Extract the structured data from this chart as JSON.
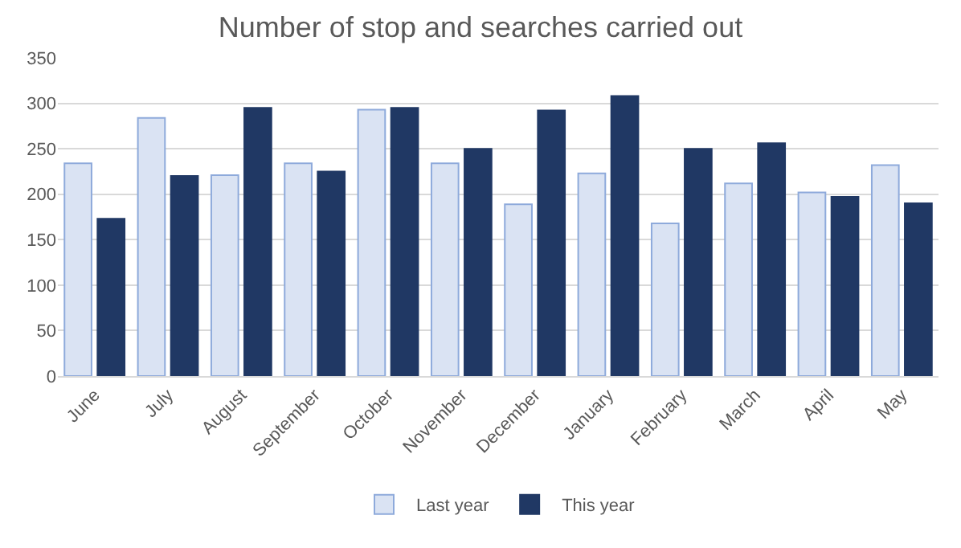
{
  "chart_data": {
    "type": "bar",
    "title": "Number of stop and searches carried out",
    "categories": [
      "June",
      "July",
      "August",
      "September",
      "October",
      "November",
      "December",
      "January",
      "February",
      "March",
      "April",
      "May"
    ],
    "series": [
      {
        "name": "Last year",
        "color": "#dae3f3",
        "values": [
          234,
          284,
          221,
          234,
          293,
          234,
          189,
          223,
          168,
          212,
          202,
          232
        ]
      },
      {
        "name": "This year",
        "color": "#203864",
        "values": [
          173,
          220,
          295,
          225,
          295,
          250,
          292,
          308,
          250,
          256,
          197,
          190
        ]
      }
    ],
    "ylim": [
      0,
      350
    ],
    "yticks": [
      0,
      50,
      100,
      150,
      200,
      250,
      300,
      350
    ],
    "grid": "y",
    "legend": "bottom"
  }
}
